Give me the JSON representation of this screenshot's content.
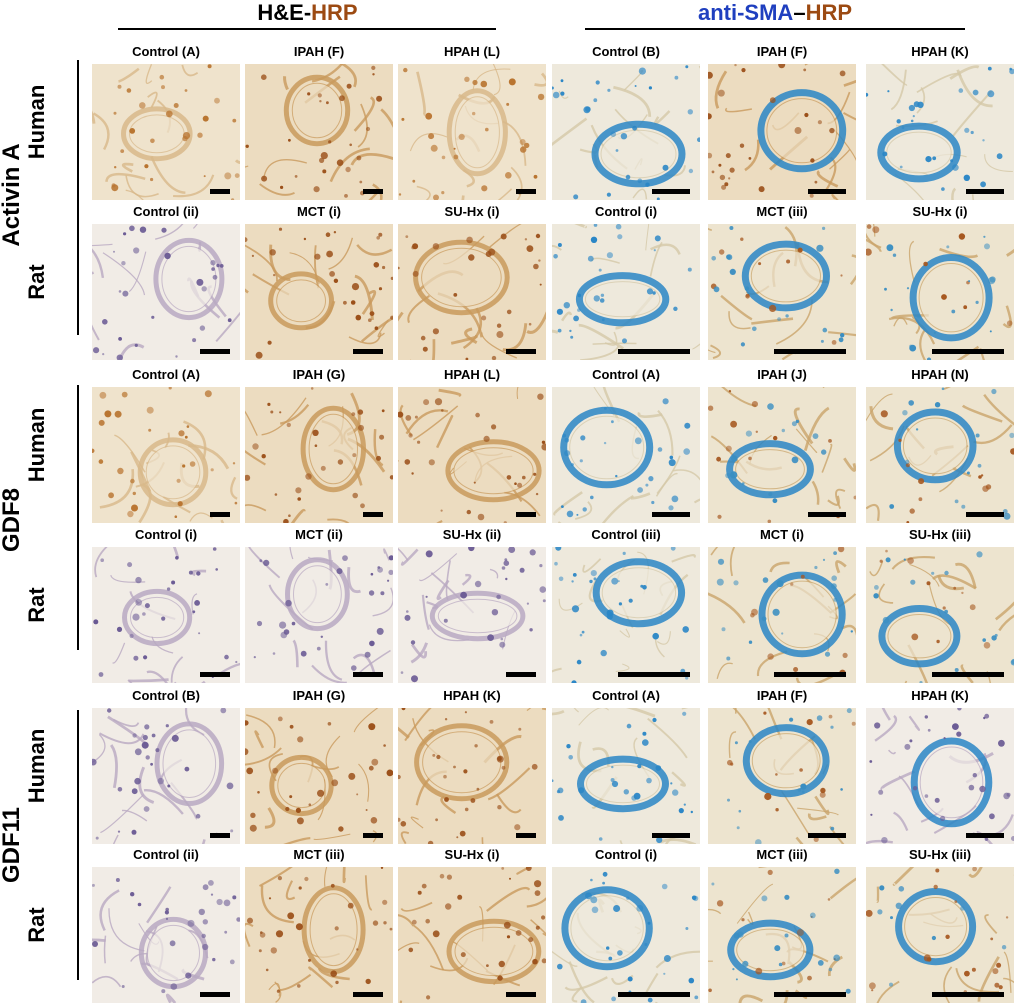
{
  "headers": [
    {
      "part1": "H&E-",
      "part2": "HRP",
      "color1": "#000000",
      "color2": "#9c4a12"
    },
    {
      "part1": "anti-SMA",
      "part2": "–",
      "part3": "HRP",
      "color1": "#1f3fbf",
      "color2": "#000000",
      "color3": "#9c4a12"
    }
  ],
  "groups": [
    {
      "label": "Activin A"
    },
    {
      "label": "GDF8"
    },
    {
      "label": "GDF11"
    }
  ],
  "species": [
    "Human",
    "Rat",
    "Human",
    "Rat",
    "Human",
    "Rat"
  ],
  "rows": [
    {
      "labels": [
        "Control (A)",
        "IPAH (F)",
        "HPAH (L)",
        "Control (B)",
        "IPAH (F)",
        "HPAH (K)"
      ],
      "stains": [
        "tan",
        "brown",
        "tan",
        "blue",
        "brown",
        "blue"
      ]
    },
    {
      "labels": [
        "Control (ii)",
        "MCT (i)",
        "SU-Hx (i)",
        "Control (i)",
        "MCT (iii)",
        "SU-Hx (i)"
      ],
      "stains": [
        "purple",
        "brown",
        "brown",
        "blue",
        "mixed",
        "mixed"
      ]
    },
    {
      "labels": [
        "Control (A)",
        "IPAH (G)",
        "HPAH (L)",
        "Control (A)",
        "IPAH (J)",
        "HPAH (N)"
      ],
      "stains": [
        "tan",
        "brown",
        "brown",
        "blue",
        "mixed",
        "mixed"
      ]
    },
    {
      "labels": [
        "Control (i)",
        "MCT (ii)",
        "SU-Hx (ii)",
        "Control (iii)",
        "MCT (i)",
        "SU-Hx (iii)"
      ],
      "stains": [
        "purple",
        "purple",
        "purple",
        "blue",
        "mixed",
        "mixed"
      ]
    },
    {
      "labels": [
        "Control (B)",
        "IPAH (G)",
        "HPAH (K)",
        "Control (A)",
        "IPAH (F)",
        "HPAH (K)"
      ],
      "stains": [
        "purple",
        "brown",
        "brown",
        "blue",
        "mixed",
        "purple"
      ]
    },
    {
      "labels": [
        "Control (ii)",
        "MCT (iii)",
        "SU-Hx (i)",
        "Control (i)",
        "MCT (iii)",
        "SU-Hx (iii)"
      ],
      "stains": [
        "purple",
        "brown",
        "brown",
        "blue",
        "mixed",
        "mixed"
      ]
    }
  ],
  "palette": {
    "tan": {
      "bg": "#efe3cc",
      "tissue": "#d8b88a",
      "spot": "#b8732e"
    },
    "brown": {
      "bg": "#ecdcc0",
      "tissue": "#c99a5c",
      "spot": "#9a4e17"
    },
    "purple": {
      "bg": "#f1ece6",
      "tissue": "#b9a9c2",
      "spot": "#6a5a94"
    },
    "blue": {
      "bg": "#eee9dc",
      "tissue": "#d4c8a8",
      "spot": "#2a86c6"
    },
    "mixed": {
      "bg": "#ede4cf",
      "tissue": "#c9a46a",
      "spot": "#3a8ec2"
    }
  }
}
